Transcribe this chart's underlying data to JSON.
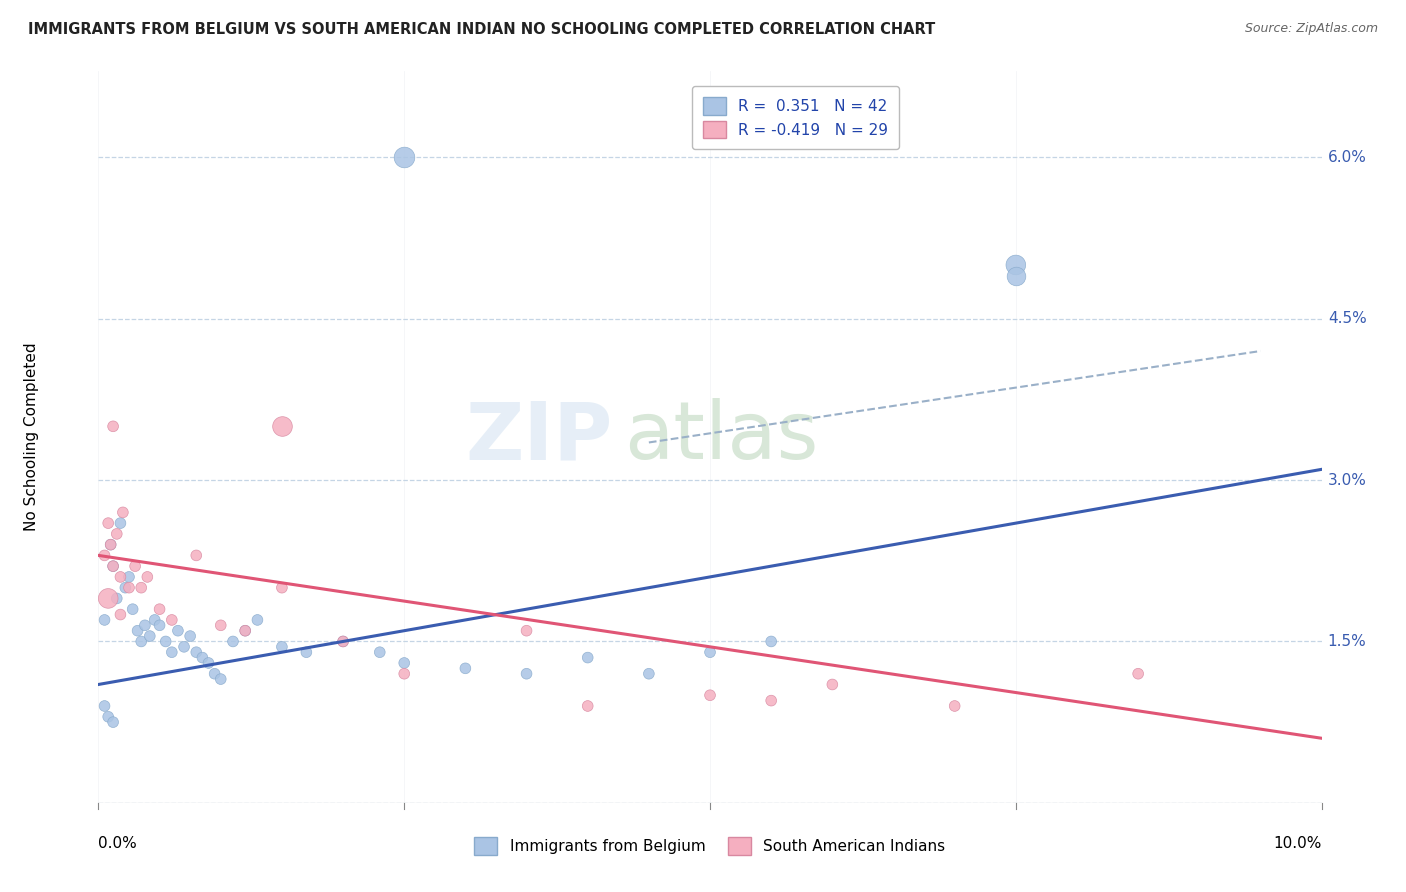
{
  "title": "IMMIGRANTS FROM BELGIUM VS SOUTH AMERICAN INDIAN NO SCHOOLING COMPLETED CORRELATION CHART",
  "source": "Source: ZipAtlas.com",
  "ylabel": "No Schooling Completed",
  "right_yvals": [
    0.0,
    1.5,
    3.0,
    4.5,
    6.0
  ],
  "xlim": [
    0.0,
    10.0
  ],
  "ylim": [
    0.0,
    6.8
  ],
  "blue_color": "#aac4e4",
  "pink_color": "#f5afc0",
  "line_blue": "#3a5cb0",
  "line_pink": "#e05575",
  "line_gray": "#9ab0c8",
  "blue_scatter_x": [
    0.05,
    0.1,
    0.12,
    0.15,
    0.18,
    0.22,
    0.25,
    0.28,
    0.32,
    0.35,
    0.38,
    0.42,
    0.46,
    0.5,
    0.55,
    0.6,
    0.65,
    0.7,
    0.75,
    0.8,
    0.85,
    0.9,
    0.95,
    1.0,
    1.1,
    1.2,
    1.3,
    1.5,
    1.7,
    2.0,
    2.3,
    2.5,
    3.0,
    3.5,
    4.0,
    4.5,
    5.0,
    5.5,
    0.05,
    0.08,
    0.12,
    7.5
  ],
  "blue_scatter_y": [
    1.7,
    2.4,
    2.2,
    1.9,
    2.6,
    2.0,
    2.1,
    1.8,
    1.6,
    1.5,
    1.65,
    1.55,
    1.7,
    1.65,
    1.5,
    1.4,
    1.6,
    1.45,
    1.55,
    1.4,
    1.35,
    1.3,
    1.2,
    1.15,
    1.5,
    1.6,
    1.7,
    1.45,
    1.4,
    1.5,
    1.4,
    1.3,
    1.25,
    1.2,
    1.35,
    1.2,
    1.4,
    1.5,
    0.9,
    0.8,
    0.75,
    5.0
  ],
  "blue_scatter_sizes": [
    60,
    60,
    60,
    60,
    60,
    60,
    60,
    60,
    60,
    60,
    60,
    60,
    60,
    60,
    60,
    60,
    60,
    60,
    60,
    60,
    60,
    60,
    60,
    60,
    60,
    60,
    60,
    60,
    60,
    60,
    60,
    60,
    60,
    60,
    60,
    60,
    60,
    60,
    60,
    60,
    60,
    200
  ],
  "pink_scatter_x": [
    0.05,
    0.08,
    0.1,
    0.12,
    0.15,
    0.18,
    0.2,
    0.25,
    0.3,
    0.35,
    0.4,
    0.5,
    0.6,
    0.8,
    1.0,
    1.2,
    1.5,
    2.0,
    2.5,
    3.5,
    4.0,
    5.0,
    5.5,
    6.0,
    7.0,
    8.5,
    0.08,
    0.12,
    0.18
  ],
  "pink_scatter_y": [
    2.3,
    2.6,
    2.4,
    2.2,
    2.5,
    2.1,
    2.7,
    2.0,
    2.2,
    2.0,
    2.1,
    1.8,
    1.7,
    2.3,
    1.65,
    1.6,
    2.0,
    1.5,
    1.2,
    1.6,
    0.9,
    1.0,
    0.95,
    1.1,
    0.9,
    1.2,
    1.9,
    3.5,
    1.75
  ],
  "pink_scatter_sizes": [
    60,
    60,
    60,
    60,
    60,
    60,
    60,
    60,
    60,
    60,
    60,
    60,
    60,
    60,
    60,
    60,
    60,
    60,
    60,
    60,
    60,
    60,
    60,
    60,
    60,
    60,
    200,
    60,
    60
  ],
  "blue_line_x": [
    0.0,
    10.0
  ],
  "blue_line_y": [
    1.1,
    3.1
  ],
  "pink_line_x": [
    0.0,
    10.0
  ],
  "pink_line_y": [
    2.3,
    0.6
  ],
  "gray_line_x": [
    4.5,
    9.5
  ],
  "gray_line_y": [
    3.35,
    4.2
  ],
  "blue_outlier_x": 2.5,
  "blue_outlier_y": 6.0,
  "pink_outlier_x": 1.5,
  "pink_outlier_y": 3.5,
  "blue_outlier2_x": 7.5,
  "blue_outlier2_y": 4.9
}
